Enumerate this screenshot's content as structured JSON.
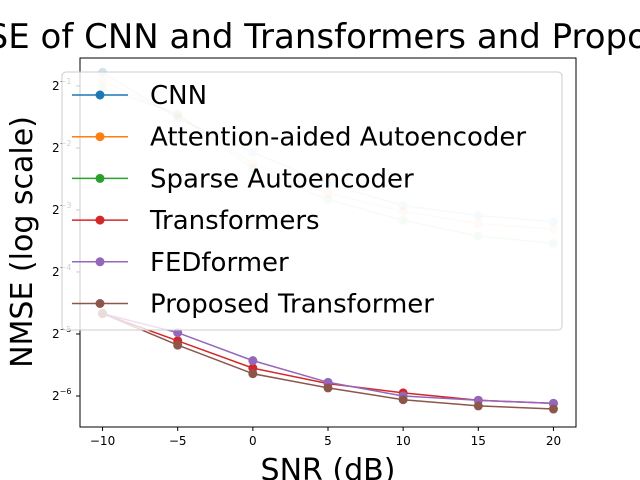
{
  "chart_data": {
    "type": "line",
    "title": "NMSE of CNN and Transformers and Proposed",
    "xlabel": "SNR (dB)",
    "ylabel": "NMSE (log scale)",
    "x": [
      -10,
      -5,
      0,
      5,
      10,
      15,
      20
    ],
    "x_ticks": [
      "−10",
      "−5",
      "0",
      "5",
      "10",
      "15",
      "20"
    ],
    "y_scale": "log2",
    "y_ticks": [
      {
        "exp": -1,
        "label": "2",
        "sup": "−1"
      },
      {
        "exp": -2,
        "label": "2",
        "sup": "−2"
      },
      {
        "exp": -3,
        "label": "2",
        "sup": "−3"
      },
      {
        "exp": -4,
        "label": "2",
        "sup": "−4"
      },
      {
        "exp": -5,
        "label": "2",
        "sup": "−5"
      },
      {
        "exp": -6,
        "label": "2",
        "sup": "−6"
      }
    ],
    "xlim": [
      -11.5,
      21.5
    ],
    "ylim_exp": [
      -6.5,
      -0.55
    ],
    "grid": false,
    "legend_position": "top",
    "series": [
      {
        "name": "CNN",
        "color": "#1f77b4",
        "faded": true,
        "y_exp": [
          -0.78,
          -1.52,
          -2.07,
          -2.58,
          -2.93,
          -3.09,
          -3.19
        ]
      },
      {
        "name": "Attention-aided Autoencoder",
        "color": "#ff7f0e",
        "faded": true,
        "y_exp": [
          -0.92,
          -1.48,
          -2.25,
          -2.73,
          -3.02,
          -3.22,
          -3.31
        ]
      },
      {
        "name": "Sparse Autoencoder",
        "color": "#2ca02c",
        "faded": true,
        "y_exp": [
          -1.03,
          -1.45,
          -2.33,
          -2.83,
          -3.17,
          -3.42,
          -3.54
        ]
      },
      {
        "name": "Transformers",
        "color": "#d62728",
        "faded": false,
        "y_exp": [
          -4.67,
          -5.11,
          -5.55,
          -5.8,
          -5.95,
          -6.07,
          -6.12
        ]
      },
      {
        "name": "FEDformer",
        "color": "#9467bd",
        "faded": false,
        "y_exp": [
          -4.67,
          -4.98,
          -5.43,
          -5.78,
          -6.0,
          -6.07,
          -6.12
        ]
      },
      {
        "name": "Proposed Transformer",
        "color": "#8c564b",
        "faded": false,
        "y_exp": [
          -4.67,
          -5.18,
          -5.64,
          -5.87,
          -6.06,
          -6.16,
          -6.21
        ]
      }
    ]
  }
}
